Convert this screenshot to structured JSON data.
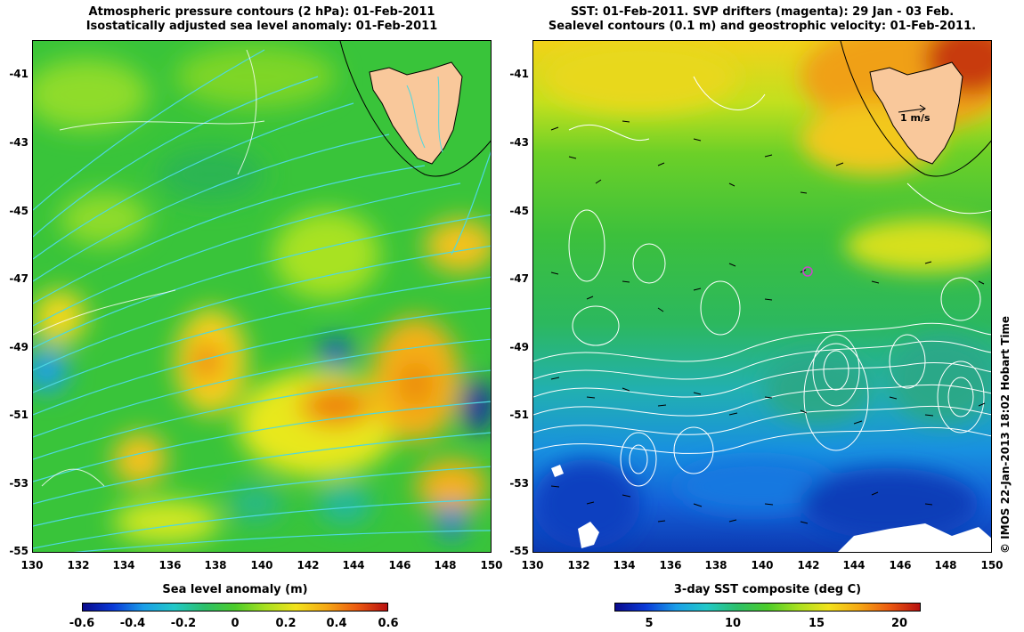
{
  "left_panel": {
    "title_line1": "Atmospheric pressure contours (2 hPa): 01-Feb-2011",
    "title_line2": "Isostatically adjusted sea level anomaly: 01-Feb-2011",
    "colorbar_label": "Sea level anomaly (m)",
    "colorbar_ticks": [
      "-0.6",
      "-0.4",
      "-0.2",
      "0",
      "0.2",
      "0.4",
      "0.6"
    ],
    "colorbar_range": [
      -0.6,
      0.6
    ]
  },
  "right_panel": {
    "title_line1": "SST: 01-Feb-2011. SVP drifters (magenta): 29 Jan - 03 Feb.",
    "title_line2": "Sealevel contours (0.1 m) and geostrophic velocity: 01-Feb-2011.",
    "colorbar_label": "3-day SST composite (deg C)",
    "colorbar_ticks": [
      "5",
      "10",
      "15",
      "20"
    ],
    "colorbar_range": [
      2,
      22
    ],
    "scale_vector_label": "1 m/s",
    "drifter": {
      "lon": 142.0,
      "lat": -46.7,
      "color": "#cc44cc"
    }
  },
  "axes": {
    "lon_ticks": [
      "130",
      "132",
      "134",
      "136",
      "138",
      "140",
      "142",
      "144",
      "146",
      "148",
      "150"
    ],
    "lat_ticks": [
      "-41",
      "-43",
      "-45",
      "-47",
      "-49",
      "-51",
      "-53",
      "-55"
    ],
    "lon_range": [
      130,
      150
    ],
    "lat_range": [
      -55,
      -40.1
    ]
  },
  "credit": "© IMOS 22-Jan-2013 18:02 Hobart Time",
  "colors": {
    "land": "#f9c89b",
    "pressure_contour": "#4fd8e0",
    "sealevel_contour": "#ffffff",
    "drifter": "#cc44cc"
  }
}
